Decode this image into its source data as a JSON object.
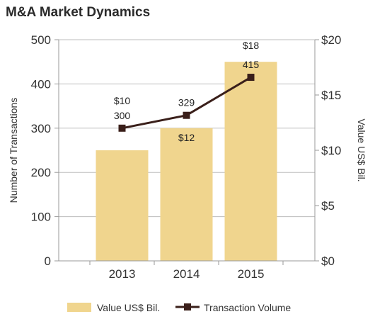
{
  "chart_data": {
    "type": "bar",
    "title": "M&A Market Dynamics",
    "categories": [
      "2013",
      "2014",
      "2015"
    ],
    "ylabel": "Number of Transactions",
    "y2label": "Value US$ Bil.",
    "ylim": [
      0,
      500
    ],
    "y2lim": [
      0,
      20
    ],
    "yticks": [
      "0",
      "100",
      "200",
      "300",
      "400",
      "500"
    ],
    "y2ticks": [
      "$0",
      "$5",
      "$10",
      "$15",
      "$20"
    ],
    "grid": true,
    "legend_position": "bottom",
    "series": [
      {
        "name": "Value US$ Bil.",
        "type": "bar",
        "axis": "right",
        "values": [
          10,
          12,
          18
        ],
        "labels": [
          "$10",
          "$12",
          "$18"
        ],
        "color": "#f0d58e"
      },
      {
        "name": "Transaction Volume",
        "type": "line",
        "axis": "left",
        "values": [
          300,
          329,
          415
        ],
        "labels": [
          "300",
          "329",
          "415"
        ],
        "color": "#3a1f1a"
      }
    ]
  }
}
